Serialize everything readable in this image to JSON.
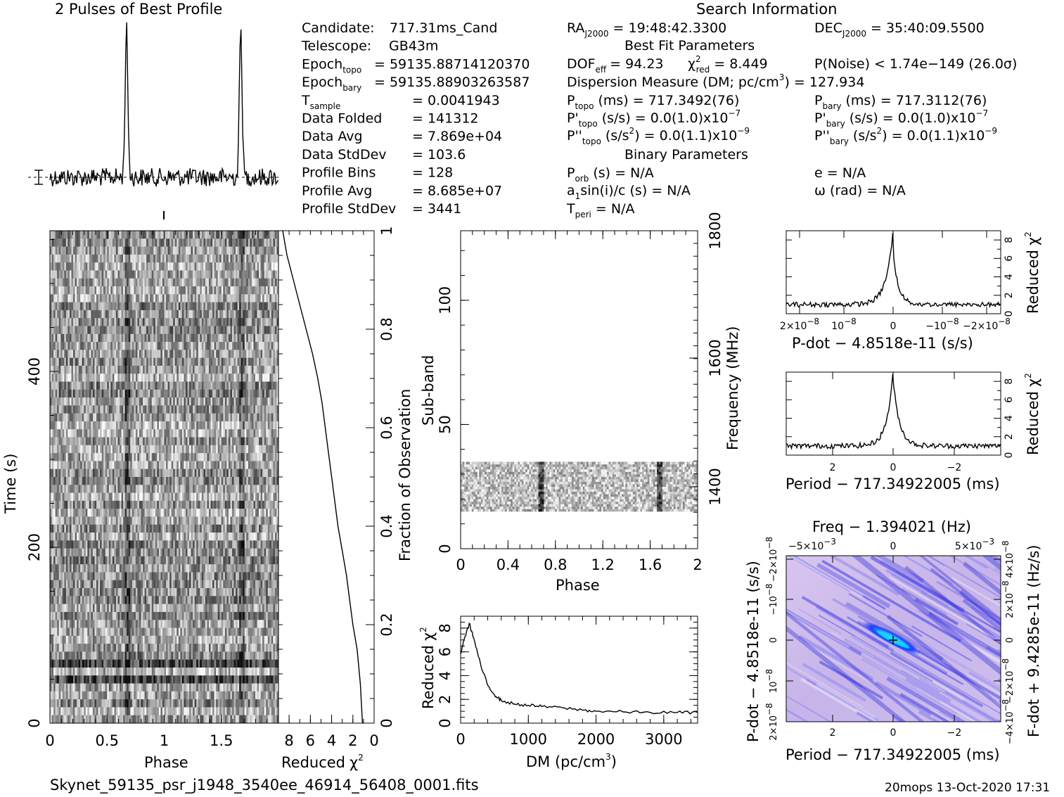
{
  "figure": {
    "profile_title": "2 Pulses of Best Profile",
    "search_title": "Search Information",
    "filename": "Skynet_59135_psr_j1948_3540ee_46914_56408_0001.fits",
    "footer": "20mops  13-Oct-2020 17:31"
  },
  "info_left": [
    {
      "label": "Candidate:",
      "value": "717.31ms_Cand"
    },
    {
      "label": "Telescope:",
      "value": "GB43m"
    },
    {
      "label": "Epoch",
      "sub": "topo",
      "value": "= 59135.88714120370"
    },
    {
      "label": "Epoch",
      "sub": "bary",
      "value": "= 59135.88903263587"
    },
    {
      "label": "T",
      "sub": "sample",
      "value": "=   0.0041943"
    },
    {
      "label": "Data Folded",
      "sub": "",
      "value": "=   141312"
    },
    {
      "label": "Data Avg",
      "sub": "",
      "value": "=   7.869e+04"
    },
    {
      "label": "Data StdDev",
      "sub": "",
      "value": "=   103.6"
    },
    {
      "label": "Profile Bins",
      "sub": "",
      "value": "=   128"
    },
    {
      "label": "Profile Avg",
      "sub": "",
      "value": "=   8.685e+07"
    },
    {
      "label": "Profile StdDev",
      "sub": "",
      "value": "=   3441"
    }
  ],
  "info_mid": {
    "ra": "RA",
    "ra_sub": "J2000",
    "ra_value": "= 19:48:42.3300",
    "dec": "DEC",
    "dec_sub": "J2000",
    "dec_value": "= 35:40:09.5500",
    "best_fit": "Best Fit Parameters",
    "dof": "DOF",
    "dof_sub": "eff",
    "dof_value": "= 94.23",
    "chi": "χ",
    "chi_sup": "2",
    "chi_sub": "red",
    "chi_value": "= 8.449",
    "pnoise": "P(Noise) < 1.74e−149   (26.0σ)",
    "dm_line": "Dispersion Measure (DM; pc/cm",
    "dm_sup": "3",
    "dm_value": ") = 127.934",
    "ptopo": "P",
    "ptopo_sub": "topo",
    "ptopo_value": "(ms)  =   717.3492(76)",
    "pbary": "P",
    "pbary_sub": "bary",
    "pbary_value": "(ms)  =   717.3112(76)",
    "pdtopo": "P'",
    "pdtopo_sub": "topo",
    "pdtopo_value": "(s/s) = 0.0(1.0)x10",
    "pdtopo_sup": "−7",
    "pdbary": "P'",
    "pdbary_sub": "bary",
    "pdbary_value": "(s/s) = 0.0(1.0)x10",
    "pdbary_sup": "−7",
    "pddtopo": "P''",
    "pddtopo_sub": "topo",
    "pddtopo_value": "(s/s",
    "pddtopo_sup1": "2",
    "pddtopo_value2": ") = 0.0(1.1)x10",
    "pddtopo_sup2": "−9",
    "pddbary": "P''",
    "pddbary_sub": "bary",
    "pddbary_value": "(s/s",
    "pddbary_sup1": "2",
    "pddbary_value2": ") = 0.0(1.1)x10",
    "pddbary_sup2": "−9",
    "binary": "Binary Parameters",
    "porb": "P",
    "porb_sub": "orb",
    "porb_value": "(s) = N/A",
    "e_value": "e = N/A",
    "asini_a": "a",
    "asini_sub": "1",
    "asini_value": "sin(i)/c (s) = N/A",
    "omega_value": "ω (rad) = N/A",
    "tperi": "T",
    "tperi_sub": "peri",
    "tperi_value": "= N/A"
  },
  "chart_data": [
    {
      "id": "profile",
      "type": "line",
      "title": "2 Pulses of Best Profile",
      "xlim": [
        0,
        2
      ],
      "peaks": [
        0.67,
        1.67
      ],
      "peak_height": 1.0
    },
    {
      "id": "time_phase",
      "type": "heatmap",
      "xlabel": "Phase",
      "ylabel": "Time (s)",
      "xlim": [
        0,
        2
      ],
      "ylim": [
        0,
        560
      ],
      "xticks": [
        "0",
        "0.5",
        "1",
        "1.5"
      ],
      "yticks": [
        "0",
        "200",
        "400"
      ]
    },
    {
      "id": "time_chi",
      "type": "line",
      "xlabel": "Reduced",
      "xlabel_sym": "χ",
      "xlabel_sup": "2",
      "ylabel": "Fraction of Observation",
      "xlim": [
        9,
        0
      ],
      "ylim": [
        0,
        1
      ],
      "xticks": [
        "8",
        "6",
        "4",
        "2",
        "0"
      ],
      "yticks": [
        "0",
        "0.2",
        "0.4",
        "0.6",
        "0.8",
        "1"
      ],
      "x": [
        8.6,
        8.2,
        7.6,
        7.0,
        6.4,
        5.8,
        5.3,
        4.9,
        4.6,
        4.3,
        4.0,
        3.7,
        3.4,
        3.0,
        2.6,
        2.3,
        2.0,
        1.6,
        1.3,
        1.1
      ],
      "y": [
        1.0,
        0.95,
        0.9,
        0.85,
        0.8,
        0.75,
        0.7,
        0.65,
        0.6,
        0.55,
        0.5,
        0.45,
        0.4,
        0.35,
        0.3,
        0.25,
        0.2,
        0.15,
        0.08,
        0.0
      ]
    },
    {
      "id": "subband",
      "type": "heatmap",
      "xlabel": "Phase",
      "ylabel": "Sub-band",
      "ylabel2": "Frequency (MHz)",
      "xlim": [
        0,
        2
      ],
      "ylim": [
        0,
        128
      ],
      "xticks": [
        "0",
        "0.4",
        "0.8",
        "1.2",
        "1.6",
        "2"
      ],
      "yticks": [
        "0",
        "50",
        "100"
      ],
      "y2ticks": [
        "1400",
        "1600",
        "1800"
      ],
      "data_rows": [
        15,
        35
      ]
    },
    {
      "id": "dm",
      "type": "line",
      "xlabel": "DM (pc/cm",
      "xlabel_sup": "3",
      "xlabel_end": ")",
      "ylabel": "Reduced",
      "ylabel_sym": "χ",
      "ylabel_sup": "2",
      "xlim": [
        0,
        3500
      ],
      "ylim": [
        0,
        9
      ],
      "xticks": [
        "0",
        "1000",
        "2000",
        "3000"
      ],
      "yticks": [
        "0",
        "2",
        "4",
        "6",
        "8"
      ],
      "x": [
        0,
        60,
        128,
        200,
        300,
        400,
        500,
        600,
        800,
        1000,
        1200,
        1500,
        1800,
        2000,
        2400,
        2800,
        3200,
        3500
      ],
      "y": [
        5.8,
        7.2,
        8.4,
        7.0,
        4.8,
        3.2,
        2.4,
        1.9,
        1.6,
        1.5,
        1.4,
        1.3,
        1.1,
        1.0,
        0.95,
        0.9,
        0.9,
        0.9
      ]
    },
    {
      "id": "pdot",
      "type": "line",
      "xlabel": "P-dot − 4.8518e-11 (s/s)",
      "ylabel": "Reduced",
      "ylabel_sym": "χ",
      "ylabel_sup": "2",
      "xticks": [
        "2×10",
        "10",
        "0",
        "−10",
        "−2×10"
      ],
      "xtick_sup": "−8",
      "yticks": [
        "0",
        "2",
        "4",
        "6",
        "8"
      ],
      "ylim": [
        0,
        9
      ]
    },
    {
      "id": "period",
      "type": "line",
      "xlabel": "Period − 717.34922005 (ms)",
      "ylabel": "Reduced",
      "ylabel_sym": "χ",
      "ylabel_sup": "2",
      "xticks": [
        "2",
        "0",
        "−2"
      ],
      "yticks": [
        "0",
        "2",
        "4",
        "6",
        "8"
      ],
      "ylim": [
        0,
        9
      ]
    },
    {
      "id": "ppdot",
      "type": "heatmap",
      "title": "Freq − 1.394021 (Hz)",
      "xlabel": "Period − 717.34922005 (ms)",
      "ylabel": "P-dot − 4.8518e-11 (s/s)",
      "ylabel2": "F-dot + 9.4285e-11 (Hz/s)",
      "xticks": [
        "2",
        "0",
        "−2"
      ],
      "top_ticks": [
        "−5×10",
        "0",
        "5×10"
      ],
      "top_sup": "−3",
      "yticks": [
        "2×10",
        "10",
        "0",
        "−10",
        "−2×10"
      ],
      "ytick_sup": "−8",
      "y2ticks": [
        "−4×10",
        "−2×10",
        "0",
        "2×10",
        "4×10"
      ],
      "y2tick_sup": "−8"
    }
  ]
}
